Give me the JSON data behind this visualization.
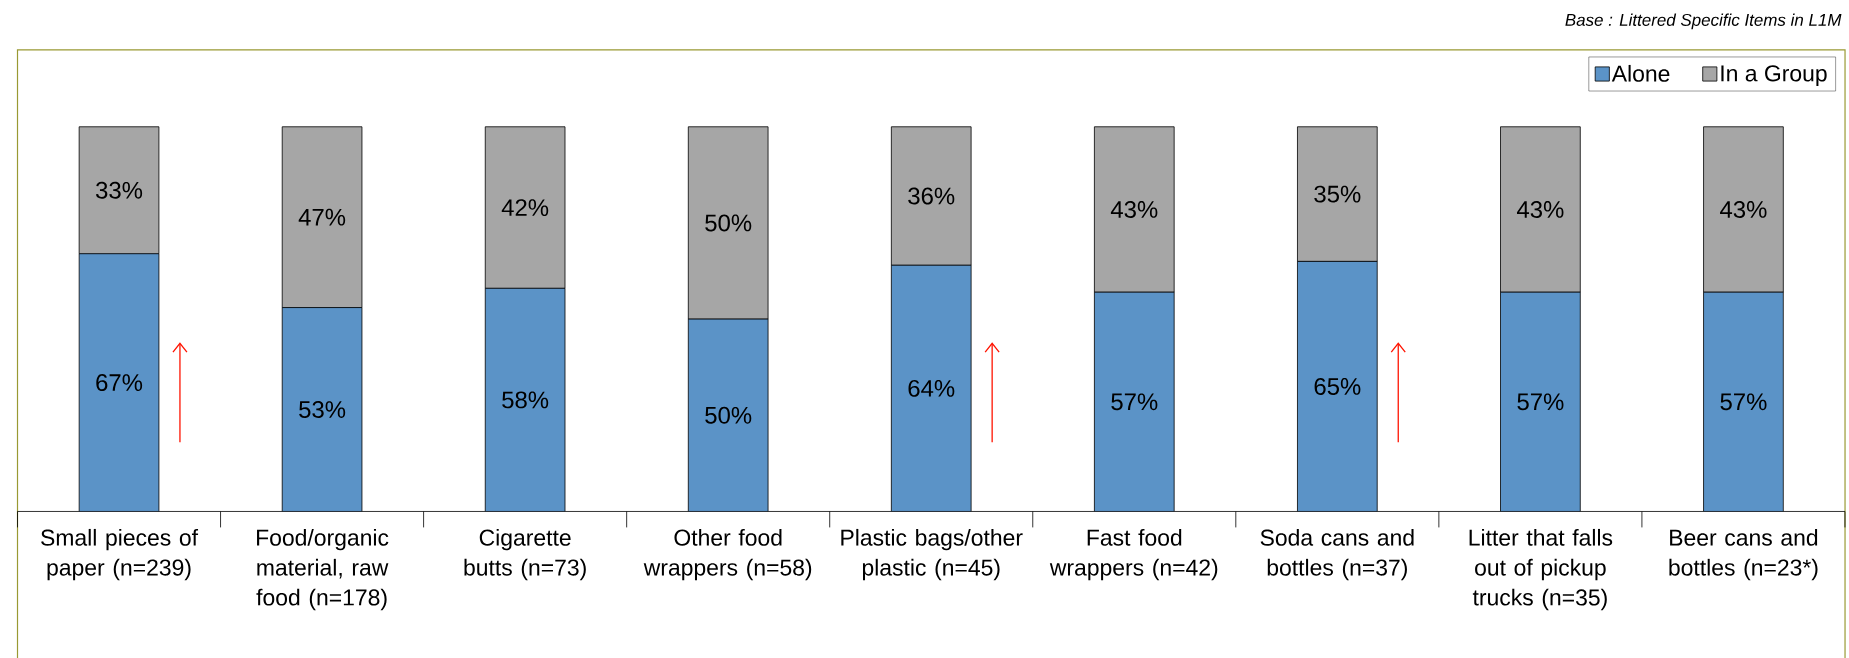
{
  "chart_data": {
    "type": "bar",
    "stacked": true,
    "legend": "top right",
    "categories": [
      "Small pieces of paper (n=239)",
      "Food/organic material, raw food (n=178)",
      "Cigarette butts (n=73)",
      "Other food wrappers (n=58)",
      "Plastic bags/other plastic (n=45)",
      "Fast food wrappers (n=42)",
      "Soda cans and bottles (n=37)",
      "Litter that falls out of pickup trucks (n=35)",
      "Beer cans and bottles (n=23*)"
    ],
    "series": [
      {
        "name": "Alone",
        "color": "#5b93c7",
        "values": [
          67,
          53,
          58,
          50,
          64,
          57,
          65,
          57,
          57
        ],
        "value_labels": [
          "67%",
          "53%",
          "58%",
          "50%",
          "64%",
          "57%",
          "65%",
          "57%",
          "57%"
        ]
      },
      {
        "name": "In a Group",
        "color": "#a6a6a6",
        "values": [
          33,
          47,
          42,
          50,
          36,
          43,
          35,
          43,
          43
        ],
        "value_labels": [
          "33%",
          "47%",
          "42%",
          "50%",
          "36%",
          "43%",
          "35%",
          "43%",
          "43%"
        ]
      }
    ],
    "annotations": [
      "Base : Littered Specific Items in L1M"
    ]
  }
}
